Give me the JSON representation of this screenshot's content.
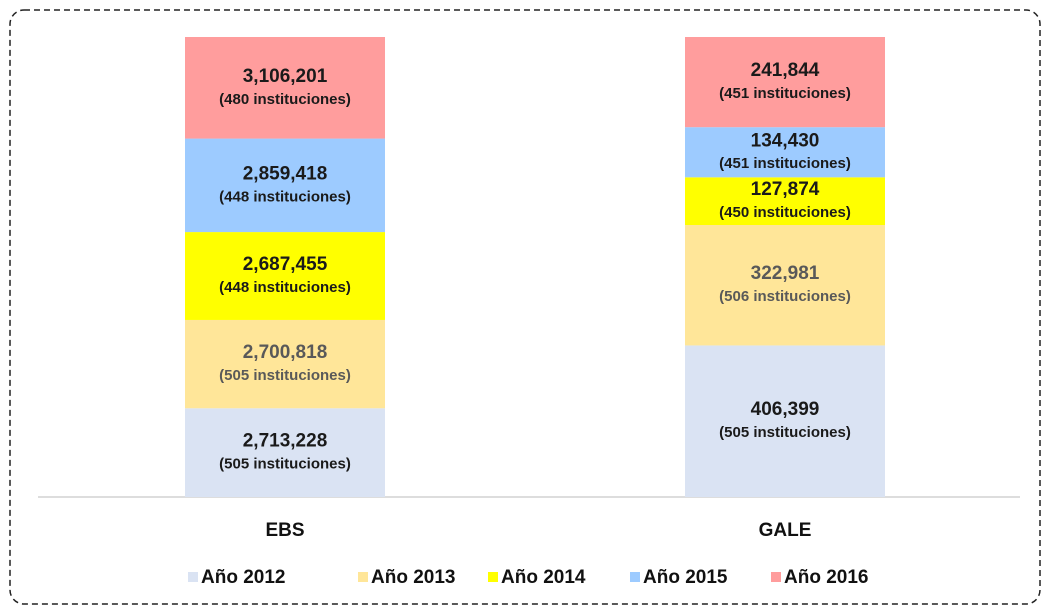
{
  "chart_data": {
    "type": "bar",
    "stacked": "percent",
    "categories": [
      "EBS",
      "GALE"
    ],
    "series": [
      {
        "name": "Año 2012",
        "color": "#dae3f3",
        "text_color": "#1a1a1a",
        "values": [
          2713228,
          406399
        ],
        "value_labels": [
          "2,713,228",
          "406,399"
        ],
        "sub_labels": [
          "(505 instituciones)",
          "(505 instituciones)"
        ]
      },
      {
        "name": "Año 2013",
        "color": "#ffe699",
        "text_color": "#595959",
        "values": [
          2700818,
          322981
        ],
        "value_labels": [
          "2,700,818",
          "322,981"
        ],
        "sub_labels": [
          "(505 instituciones)",
          "(506 instituciones)"
        ]
      },
      {
        "name": "Año 2014",
        "color": "#ffff00",
        "text_color": "#1a1a1a",
        "values": [
          2687455,
          127874
        ],
        "value_labels": [
          "2,687,455",
          "127,874"
        ],
        "sub_labels": [
          "(448 instituciones)",
          "(450 instituciones)"
        ]
      },
      {
        "name": "Año 2015",
        "color": "#9dcbff",
        "text_color": "#1a1a1a",
        "values": [
          2859418,
          134430
        ],
        "value_labels": [
          "2,859,418",
          "134,430"
        ],
        "sub_labels": [
          "(448 instituciones)",
          "(451 instituciones)"
        ]
      },
      {
        "name": "Año 2016",
        "color": "#ff9d9d",
        "text_color": "#1a1a1a",
        "values": [
          3106201,
          241844
        ],
        "value_labels": [
          "3,106,201",
          "241,844"
        ],
        "sub_labels": [
          "(480 instituciones)",
          "(451 instituciones)"
        ]
      }
    ],
    "legend": "bottom"
  }
}
